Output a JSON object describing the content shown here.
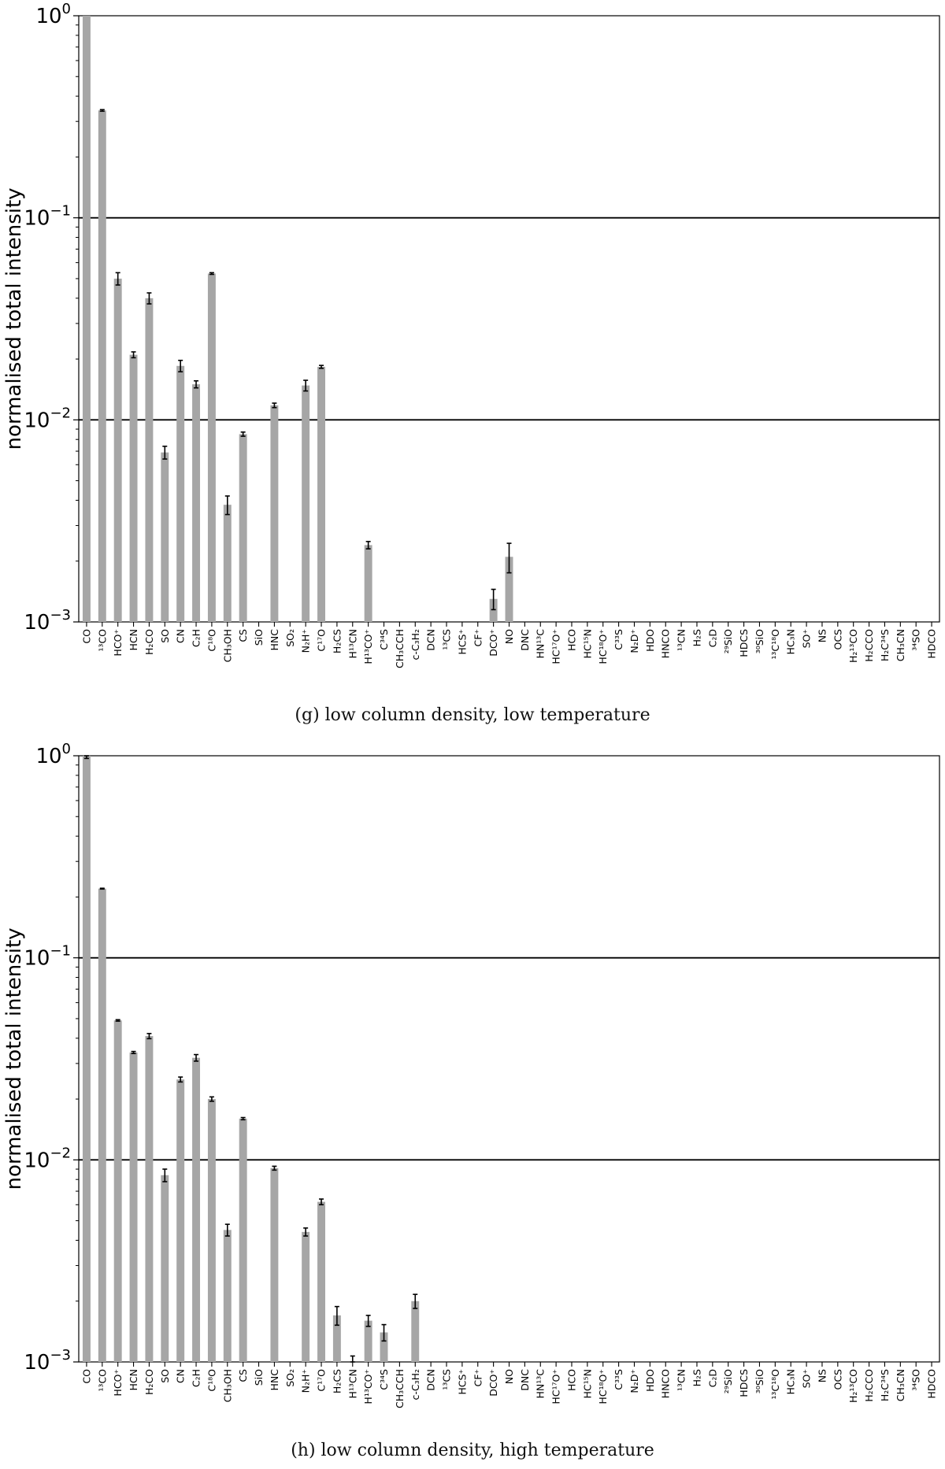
{
  "chart_data": [
    {
      "type": "bar",
      "caption": "(g) low column density, low temperature",
      "ylabel": "normalised total intensity",
      "yscale": "log",
      "ylim": [
        0.001,
        1
      ],
      "ytick_labels": [
        {
          "base": "10",
          "exp": "0"
        },
        {
          "base": "10",
          "exp": "−1"
        },
        {
          "base": "10",
          "exp": "−2"
        },
        {
          "base": "10",
          "exp": "−3"
        }
      ],
      "hlines": [
        0.1,
        0.01
      ],
      "grid": false,
      "bar_color": "#a6a6a6",
      "categories": [
        "CO",
        "¹³CO",
        "HCO⁺",
        "HCN",
        "H₂CO",
        "SO",
        "CN",
        "C₂H",
        "C¹⁸O",
        "CH₃OH",
        "CS",
        "SiO",
        "HNC",
        "SO₂",
        "N₂H⁺",
        "C¹⁷O",
        "H₂CS",
        "H¹³CN",
        "H¹³CO⁺",
        "C³⁴S",
        "CH₃CCH",
        "c-C₃H₂",
        "DCN",
        "¹³CS",
        "HCS⁺",
        "CF⁺",
        "DCO⁺",
        "NO",
        "DNC",
        "HN¹³C",
        "HC¹⁷O⁺",
        "HCO",
        "HC¹⁵N",
        "HC¹⁸O⁺",
        "C³³S",
        "N₂D⁺",
        "HDO",
        "HNCO",
        "¹³CN",
        "H₂S",
        "C₂D",
        "²⁹SiO",
        "HDCS",
        "³⁰SiO",
        "¹³C¹⁸O",
        "HC₃N",
        "SO⁺",
        "NS",
        "OCS",
        "H₂¹³CO",
        "H₂CCO",
        "H₂C³⁴S",
        "CH₃CN",
        "³⁴SO",
        "HDCO"
      ],
      "values": [
        1.0,
        0.34,
        0.05,
        0.021,
        0.04,
        0.0069,
        0.0185,
        0.015,
        0.053,
        0.0038,
        0.0085,
        null,
        0.0118,
        null,
        0.0148,
        0.0183,
        null,
        null,
        0.0024,
        null,
        null,
        null,
        null,
        null,
        null,
        null,
        0.0013,
        0.0021,
        null,
        null,
        null,
        null,
        null,
        null,
        null,
        null,
        null,
        null,
        null,
        null,
        null,
        null,
        null,
        null,
        null,
        null,
        null,
        null,
        null,
        null,
        null,
        null,
        null,
        null,
        null
      ],
      "errors": [
        0,
        0.003,
        0.0035,
        0.0007,
        0.0025,
        0.0005,
        0.0012,
        0.0006,
        0.0005,
        0.0004,
        0.0002,
        null,
        0.0003,
        null,
        0.0009,
        0.0003,
        null,
        null,
        0.0001,
        null,
        null,
        null,
        null,
        null,
        null,
        null,
        0.00015,
        0.00035,
        null,
        null,
        null,
        null,
        null,
        null,
        null,
        null,
        null,
        null,
        null,
        null,
        null,
        null,
        null,
        null,
        null,
        null,
        null,
        null,
        null,
        null,
        null,
        null,
        null,
        null,
        null
      ]
    },
    {
      "type": "bar",
      "caption": "(h) low column density, high temperature",
      "ylabel": "normalised total intensity",
      "yscale": "log",
      "ylim": [
        0.001,
        1
      ],
      "ytick_labels": [
        {
          "base": "10",
          "exp": "0"
        },
        {
          "base": "10",
          "exp": "−1"
        },
        {
          "base": "10",
          "exp": "−2"
        },
        {
          "base": "10",
          "exp": "−3"
        }
      ],
      "hlines": [
        0.1,
        0.01
      ],
      "grid": false,
      "bar_color": "#a6a6a6",
      "categories": [
        "CO",
        "¹³CO",
        "HCO⁺",
        "HCN",
        "H₂CO",
        "SO",
        "CN",
        "C₂H",
        "C¹⁸O",
        "CH₃OH",
        "CS",
        "SiO",
        "HNC",
        "SO₂",
        "N₂H⁺",
        "C¹⁷O",
        "H₂CS",
        "H¹³CN",
        "H¹³CO⁺",
        "C³⁴S",
        "CH₃CCH",
        "c-C₃H₂",
        "DCN",
        "¹³CS",
        "HCS⁺",
        "CF⁺",
        "DCO⁺",
        "NO",
        "DNC",
        "HN¹³C",
        "HC¹⁷O⁺",
        "HCO",
        "HC¹⁵N",
        "HC¹⁸O⁺",
        "C³³S",
        "N₂D⁺",
        "HDO",
        "HNCO",
        "¹³CN",
        "H₂S",
        "C₂D",
        "²⁹SiO",
        "HDCS",
        "³⁰SiO",
        "¹³C¹⁸O",
        "HC₃N",
        "SO⁺",
        "NS",
        "OCS",
        "H₂¹³CO",
        "H₂CCO",
        "H₂C³⁴S",
        "CH₃CN",
        "³⁴SO",
        "HDCO"
      ],
      "values": [
        1.0,
        0.22,
        0.049,
        0.034,
        0.041,
        0.0084,
        0.025,
        0.032,
        0.02,
        0.0045,
        0.016,
        null,
        0.0091,
        null,
        0.0044,
        0.0062,
        0.0017,
        0.00095,
        0.0016,
        0.0014,
        null,
        0.002,
        null,
        null,
        null,
        null,
        null,
        null,
        null,
        null,
        null,
        null,
        null,
        null,
        null,
        null,
        null,
        null,
        null,
        null,
        null,
        null,
        null,
        null,
        null,
        null,
        null,
        null,
        null,
        null,
        null,
        null,
        null,
        null,
        null
      ],
      "errors": [
        0.03,
        0.001,
        0.0004,
        0.0004,
        0.0012,
        0.0006,
        0.0007,
        0.0012,
        0.0005,
        0.0003,
        0.0002,
        null,
        0.0002,
        null,
        0.0002,
        0.0002,
        0.00018,
        0.00012,
        0.0001,
        0.00013,
        null,
        0.00016,
        null,
        null,
        null,
        null,
        null,
        null,
        null,
        null,
        null,
        null,
        null,
        null,
        null,
        null,
        null,
        null,
        null,
        null,
        null,
        null,
        null,
        null,
        null,
        null,
        null,
        null,
        null,
        null,
        null,
        null,
        null,
        null,
        null
      ]
    }
  ]
}
